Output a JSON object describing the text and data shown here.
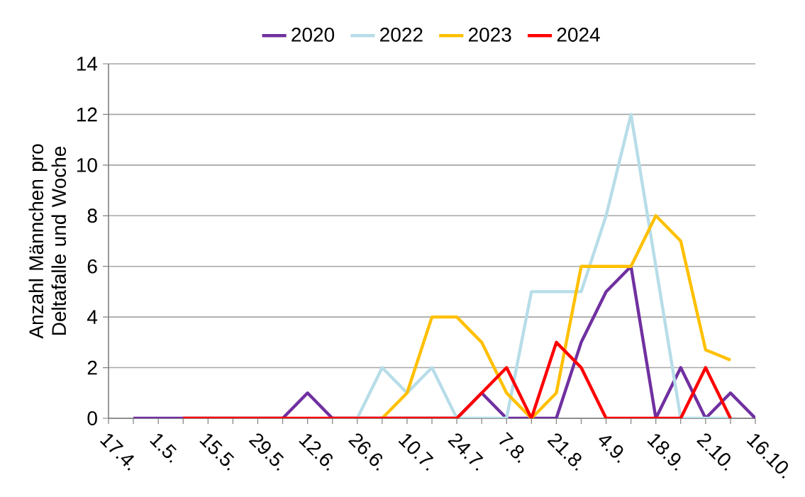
{
  "chart_data": {
    "type": "line",
    "ylabel": "Anzahl Männchen pro Deltafalle und Woche",
    "categories": [
      "17.4.",
      null,
      "1.5.",
      null,
      "15.5.",
      null,
      "29.5.",
      null,
      "12.6.",
      null,
      "26.6.",
      null,
      "10.7.",
      null,
      "24.7.",
      null,
      "7.8.",
      null,
      "21.8.",
      null,
      "4.9.",
      null,
      "18.9.",
      null,
      "2.10.",
      null,
      "16.10."
    ],
    "series": [
      {
        "name": "2020",
        "color": "#7030a0",
        "values": [
          null,
          0,
          0,
          0,
          0,
          0,
          0,
          0,
          1,
          0,
          0,
          0,
          0,
          0,
          0,
          1,
          0,
          0,
          0,
          3,
          5,
          6,
          0,
          2,
          0,
          1,
          0
        ]
      },
      {
        "name": "2022",
        "color": "#b7dde8",
        "values": [
          null,
          null,
          null,
          null,
          null,
          null,
          null,
          null,
          null,
          null,
          0,
          2,
          1,
          2,
          0,
          0,
          0,
          5,
          5,
          5,
          8,
          12,
          6,
          0,
          0,
          0,
          null
        ]
      },
      {
        "name": "2023",
        "color": "#ffc000",
        "values": [
          null,
          null,
          null,
          null,
          null,
          null,
          null,
          null,
          null,
          null,
          null,
          0,
          1,
          4,
          4,
          3,
          1,
          0,
          1,
          6,
          6,
          6,
          8,
          7,
          2.7,
          2.3,
          null
        ]
      },
      {
        "name": "2024",
        "color": "#ff0000",
        "values": [
          null,
          null,
          null,
          0,
          0,
          0,
          0,
          0,
          0,
          0,
          0,
          0,
          0,
          0,
          0,
          1,
          2,
          0,
          3,
          2,
          0,
          0,
          0,
          0,
          2,
          0,
          null
        ]
      }
    ],
    "ylim": [
      0,
      14
    ],
    "yticks": [
      0,
      2,
      4,
      6,
      8,
      10,
      12,
      14
    ],
    "grid": "y",
    "legend": "top",
    "marker": "none",
    "line_style": "solid"
  }
}
